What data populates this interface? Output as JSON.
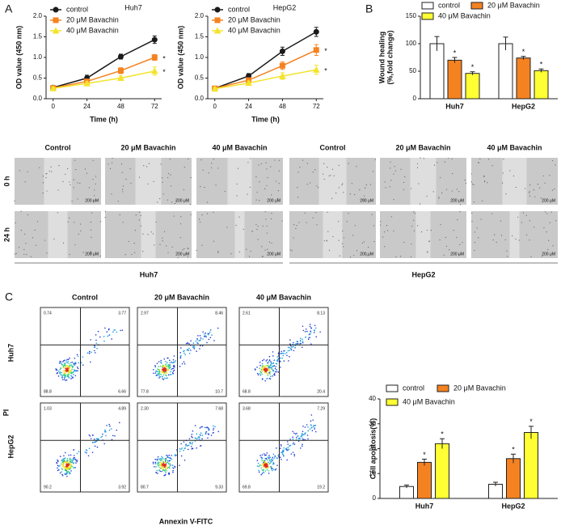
{
  "panel_labels": [
    "A",
    "B",
    "C"
  ],
  "chart_data": [
    {
      "type": "line",
      "title": "Huh7",
      "x_label": "Time (h)",
      "y_label": "OD value (450 nm)",
      "x": [
        0,
        24,
        48,
        72
      ],
      "xlim": [
        -5,
        77
      ],
      "xticks": [
        0,
        24,
        48,
        72
      ],
      "ylim": [
        0,
        2
      ],
      "yticks": [
        {
          "value": 0,
          "label": "0.0"
        },
        0.5,
        {
          "value": 1,
          "label": "1.0"
        },
        1.5,
        {
          "value": 2,
          "label": "2.0"
        }
      ],
      "series": [
        {
          "name": "control",
          "color": "#1a1a1a",
          "marker": "circle",
          "values": [
            0.27,
            0.5,
            1.02,
            1.43
          ],
          "errors": [
            0.04,
            0.07,
            0.06,
            0.09
          ]
        },
        {
          "name": "20 μM Bavachin",
          "color": "#f58220",
          "marker": "square",
          "values": [
            0.26,
            0.42,
            0.68,
            1.0
          ],
          "errors": [
            0.03,
            0.05,
            0.07,
            0.07
          ],
          "label": "*"
        },
        {
          "name": "40 μM Bavachin",
          "color": "#f3e32c",
          "marker": "triangle",
          "values": [
            0.25,
            0.37,
            0.5,
            0.67
          ],
          "errors": [
            0.03,
            0.04,
            0.05,
            0.1
          ],
          "label": "*"
        }
      ]
    },
    {
      "type": "line",
      "title": "HepG2",
      "x_label": "Time (h)",
      "y_label": "OD value (450 nm)",
      "x": [
        0,
        24,
        48,
        72
      ],
      "xlim": [
        -5,
        77
      ],
      "xticks": [
        0,
        24,
        48,
        72
      ],
      "ylim": [
        0,
        2
      ],
      "yticks": [
        {
          "value": 0,
          "label": "0.0"
        },
        0.5,
        {
          "value": 1,
          "label": "1.0"
        },
        1.5,
        {
          "value": 2,
          "label": "2.0"
        }
      ],
      "series": [
        {
          "name": "control",
          "color": "#1a1a1a",
          "marker": "circle",
          "values": [
            0.25,
            0.55,
            1.15,
            1.62
          ],
          "errors": [
            0.04,
            0.06,
            0.1,
            0.11
          ]
        },
        {
          "name": "20 μM Bavachin",
          "color": "#f58220",
          "marker": "square",
          "values": [
            0.25,
            0.45,
            0.8,
            1.18
          ],
          "errors": [
            0.03,
            0.05,
            0.09,
            0.13
          ],
          "label": "*"
        },
        {
          "name": "40 μM Bavachin",
          "color": "#f3e32c",
          "marker": "triangle",
          "values": [
            0.24,
            0.38,
            0.55,
            0.7
          ],
          "errors": [
            0.03,
            0.05,
            0.08,
            0.11
          ],
          "label": "*"
        }
      ]
    },
    {
      "type": "bar",
      "y_label": [
        "Wound healing",
        "(%,fold change)"
      ],
      "categories": [
        "Huh7",
        "HepG2"
      ],
      "ylim": [
        0,
        150
      ],
      "yticks": [
        0,
        50,
        100,
        150
      ],
      "series": [
        {
          "name": "control",
          "color": "#ffffff",
          "values": [
            100,
            100
          ],
          "errors": [
            13,
            12
          ]
        },
        {
          "name": "20 μM Bavachin",
          "color": "#f58220",
          "values": [
            70,
            74
          ],
          "errors": [
            5,
            3
          ],
          "label": "*"
        },
        {
          "name": "40 μM Bavachin",
          "color": "#ffff33",
          "values": [
            46,
            51
          ],
          "errors": [
            3,
            3
          ],
          "label": "*"
        }
      ]
    },
    {
      "type": "bar",
      "y_label": [
        "Cell apoptosis(%)"
      ],
      "categories": [
        "Huh7",
        "HepG2"
      ],
      "ylim": [
        0,
        40
      ],
      "yticks": [
        0,
        10,
        20,
        30,
        40
      ],
      "series": [
        {
          "name": "control",
          "color": "#ffffff",
          "values": [
            4.8,
            5.7
          ],
          "errors": [
            0.6,
            0.8
          ]
        },
        {
          "name": "20 μM Bavachin",
          "color": "#f58220",
          "values": [
            14.5,
            16
          ],
          "errors": [
            1.3,
            1.8
          ],
          "label": "*"
        },
        {
          "name": "40 μM Bavachin",
          "color": "#ffff33",
          "values": [
            22,
            26.5
          ],
          "errors": [
            2,
            2.5
          ],
          "label": "*"
        }
      ]
    }
  ],
  "wound": {
    "columns": [
      "Control",
      "20 μM Bavachin",
      "40 μM Bavachin",
      "Control",
      "20 μM Bavachin",
      "40 μM Bavachin"
    ],
    "rows": [
      "0 h",
      "24 h"
    ],
    "scale": "200 μM",
    "groups": [
      "Huh7",
      "HepG2"
    ]
  },
  "flow": {
    "columns": [
      "Control",
      "20 μM Bavachin",
      "40 μM Bavachin"
    ],
    "rows": [
      "Huh7",
      "HepG2"
    ],
    "x_label": "Annexin V-FITC",
    "y_label": "PI",
    "quadrants": [
      [
        [
          "0.74",
          "3.77",
          "88.8",
          "6.66"
        ],
        [
          "2.97",
          "8.46",
          "77.8",
          "10.7"
        ],
        [
          "2.61",
          "8.13",
          "68.8",
          "20.4"
        ]
      ],
      [
        [
          "1.03",
          "4.89",
          "90.2",
          "3.92"
        ],
        [
          "2.30",
          "7.68",
          "80.7",
          "9.33"
        ],
        [
          "3.68",
          "7.29",
          "69.8",
          "19.2"
        ]
      ]
    ]
  }
}
